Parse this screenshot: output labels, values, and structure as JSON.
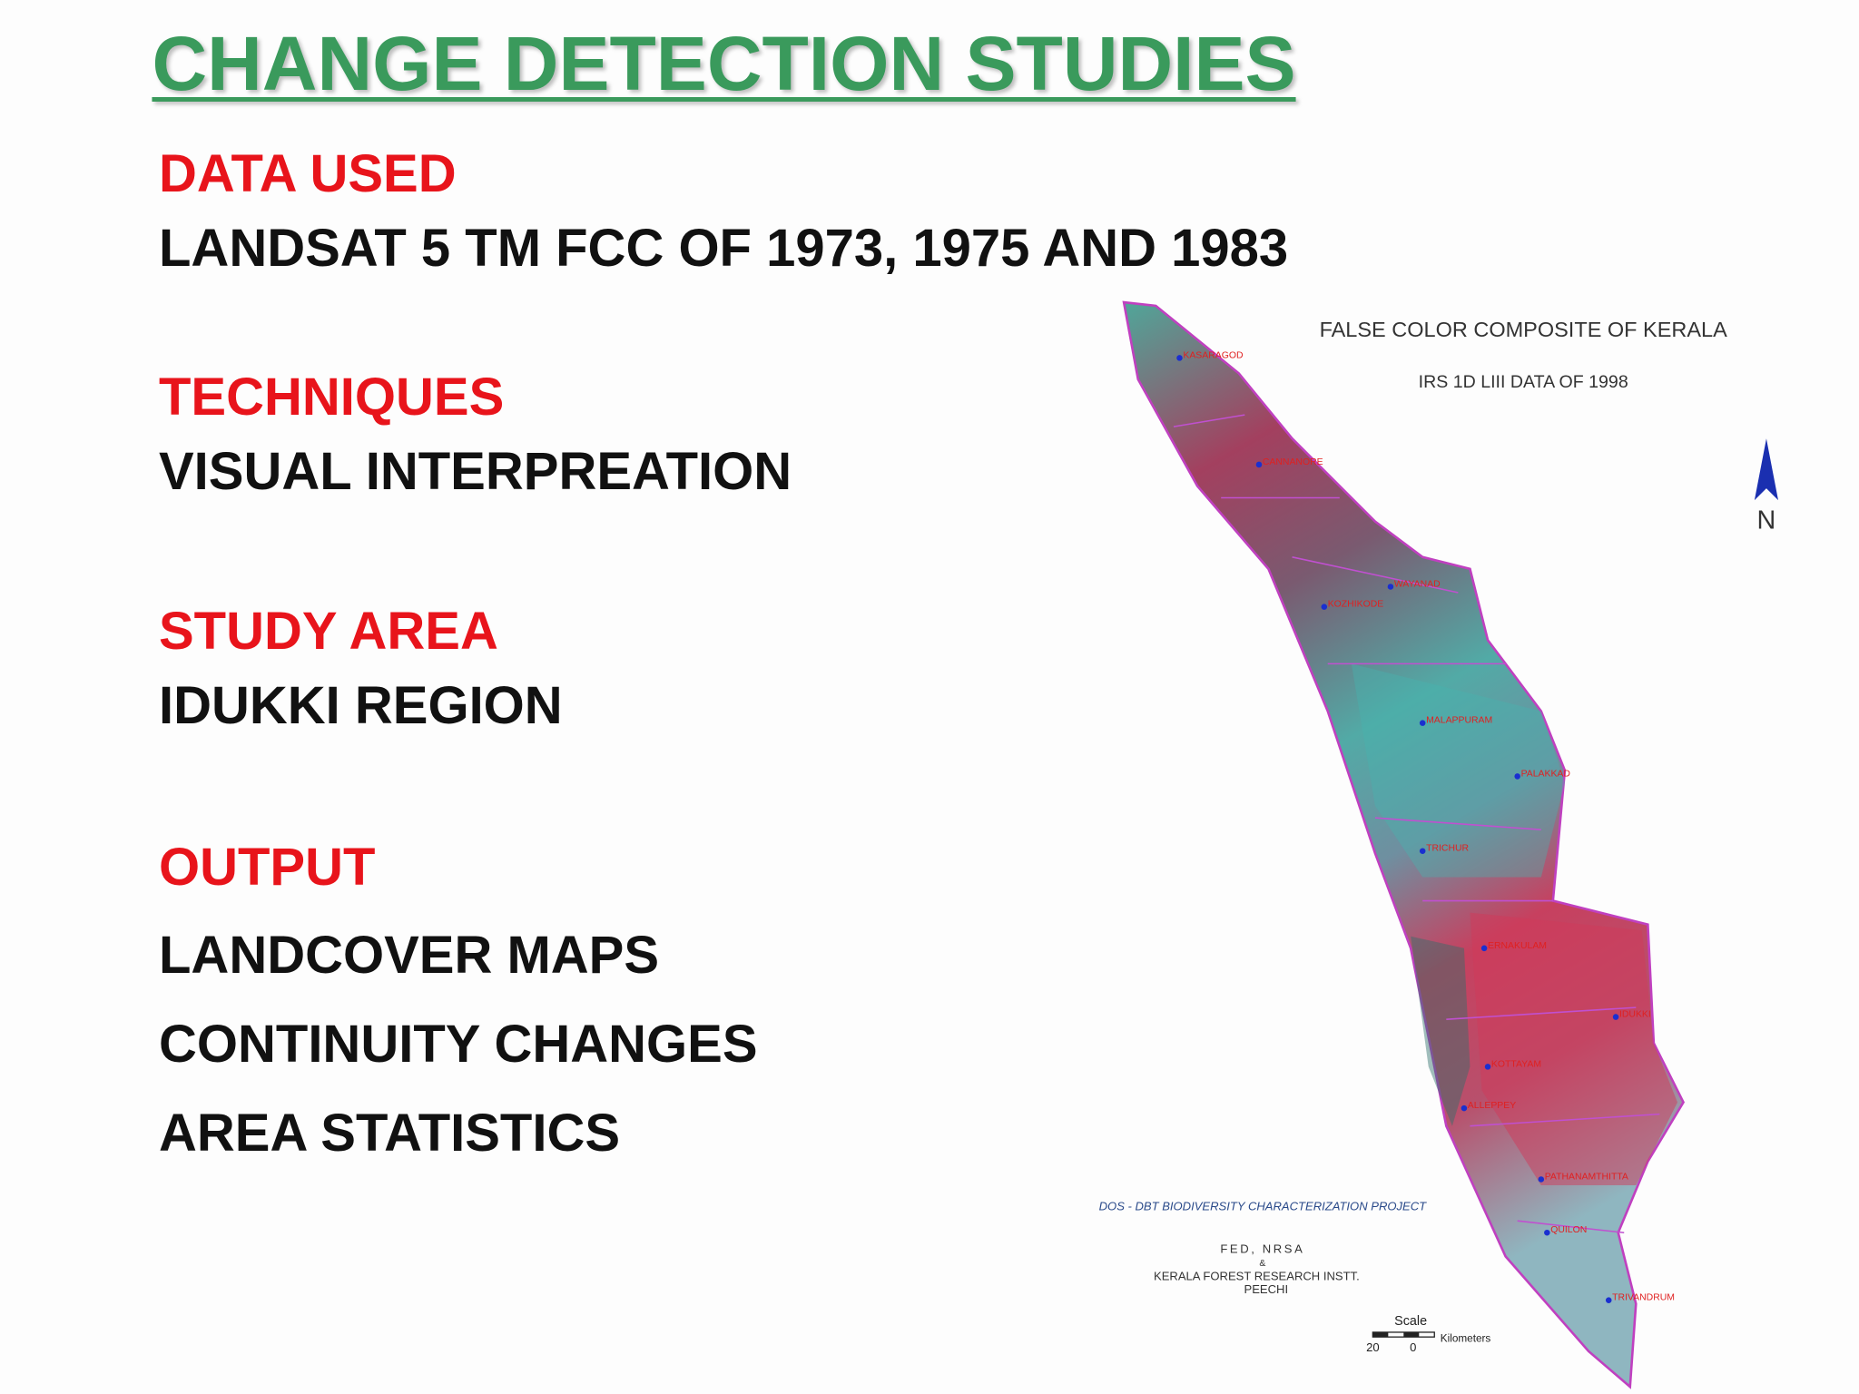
{
  "header": {
    "title": "CHANGE DETECTION STUDIES"
  },
  "sections": [
    {
      "heading": "DATA USED",
      "items": [
        "LANDSAT 5 TM FCC OF 1973, 1975 AND 1983"
      ]
    },
    {
      "heading": "TECHNIQUES",
      "items": [
        "VISUAL INTERPREATION"
      ]
    },
    {
      "heading": "STUDY AREA",
      "items": [
        "IDUKKI REGION"
      ]
    },
    {
      "heading": "OUTPUT",
      "items": [
        "LANDCOVER MAPS",
        "CONTINUITY CHANGES",
        "AREA STATISTICS"
      ]
    }
  ],
  "map": {
    "title": "FALSE COLOR COMPOSITE  OF KERALA",
    "subtitle": "IRS 1D LIII DATA OF 1998",
    "north": "N",
    "project": "DOS - DBT BIODIVERSITY CHARACTERIZATION PROJECT",
    "credits": [
      "FED, NRSA",
      "&",
      "KERALA FOREST RESEARCH INSTT.",
      "PEECHI"
    ],
    "scale": {
      "title": "Scale",
      "ticks": [
        "20",
        "0"
      ],
      "unit": "Kilometers"
    },
    "places": [
      "KASARAGOD",
      "CANNANORE",
      "KOZHIKODE",
      "WAYANAD",
      "MALAPPURAM",
      "PALAKKAD",
      "TRICHUR",
      "ERNAKULAM",
      "IDUKKI",
      "KOTTAYAM",
      "ALLEPPEY",
      "PATHANAMTHITTA",
      "QUILON",
      "TRIVANDRUM"
    ]
  }
}
